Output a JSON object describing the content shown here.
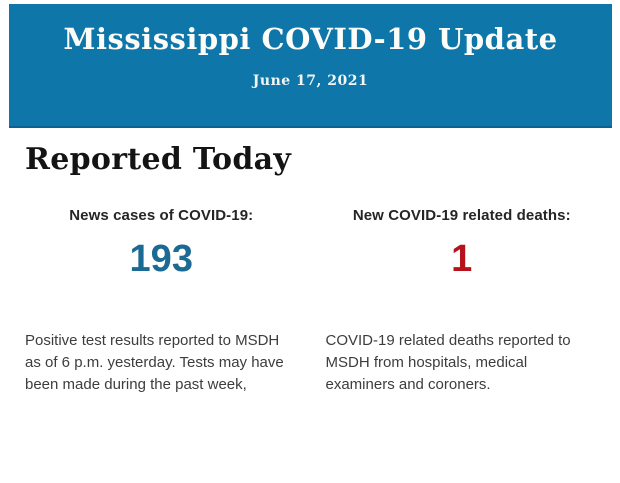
{
  "header": {
    "title": "Mississippi COVID-19 Update",
    "date": "June 17, 2021"
  },
  "main": {
    "heading": "Reported Today",
    "stats": [
      {
        "label": "News cases of COVID-19:",
        "value": "193",
        "description": "Positive test results reported to MSDH as of 6 p.m. yesterday. Tests may have been made during the past week,"
      },
      {
        "label": "New COVID-19 related deaths:",
        "value": "1",
        "description": "COVID-19 related deaths reported to MSDH from hospitals, medical examiners and coroners."
      }
    ]
  },
  "colors": {
    "banner_background": "#0f76a9",
    "cases_value": "#1b6a94",
    "deaths_value": "#b5121b",
    "heading_text": "#141414",
    "body_text": "#3d3d3d"
  }
}
